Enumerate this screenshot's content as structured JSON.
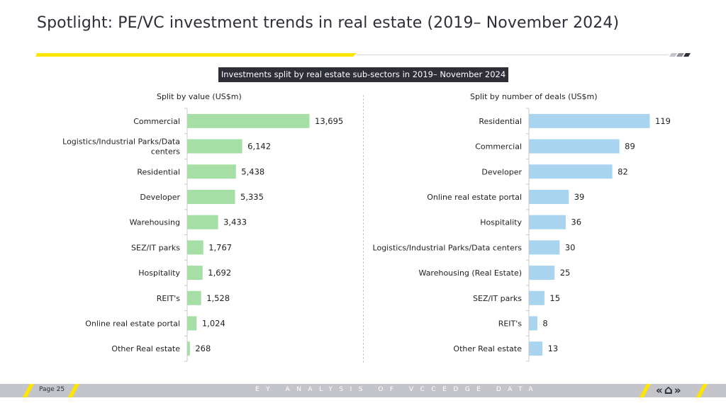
{
  "title": "Spotlight: PE/VC investment trends in real estate (2019– November 2024)",
  "subtitle": "Investments split by real estate sub-sectors in 2019– November 2024",
  "colors": {
    "value_bar": "#a5dfa5",
    "deals_bar": "#a8d4ef",
    "accent_yellow": "#ffe600",
    "dark": "#2e2e38"
  },
  "chart_data": [
    {
      "type": "bar",
      "orientation": "horizontal",
      "title": "Split by value (US$m)",
      "categories": [
        "Commercial",
        "Logistics/Industrial Parks/Data centers",
        "Residential",
        "Developer",
        "Warehousing",
        "SEZ/IT parks",
        "Hospitality",
        "REIT's",
        "Online real estate portal",
        "Other Real estate"
      ],
      "values": [
        13695,
        6142,
        5438,
        5335,
        3433,
        1767,
        1692,
        1528,
        1024,
        268
      ],
      "value_labels": [
        "13,695",
        "6,142",
        "5,438",
        "5,335",
        "3,433",
        "1,767",
        "1,692",
        "1,528",
        "1,024",
        "268"
      ],
      "xlim": [
        0,
        13695
      ]
    },
    {
      "type": "bar",
      "orientation": "horizontal",
      "title": "Split by number of deals (US$m)",
      "categories": [
        "Residential",
        "Commercial",
        "Developer",
        "Online real estate portal",
        "Hospitality",
        "Logistics/Industrial Parks/Data centers",
        "Warehousing (Real Estate)",
        "SEZ/IT parks",
        "REIT's",
        "Other Real estate"
      ],
      "values": [
        119,
        89,
        82,
        39,
        36,
        30,
        25,
        15,
        8,
        13
      ],
      "value_labels": [
        "119",
        "89",
        "82",
        "39",
        "36",
        "30",
        "25",
        "15",
        "8",
        "13"
      ],
      "xlim": [
        0,
        119
      ]
    }
  ],
  "footer": {
    "page": "Page 25",
    "center": "EY ANALYSIS OF VCCEDGE DATA",
    "prev_icon": "double-chevron-left-icon",
    "home_icon": "home-icon",
    "next_icon": "double-chevron-right-icon",
    "prev_glyph": "«",
    "home_glyph": "⌂",
    "next_glyph": "»"
  }
}
